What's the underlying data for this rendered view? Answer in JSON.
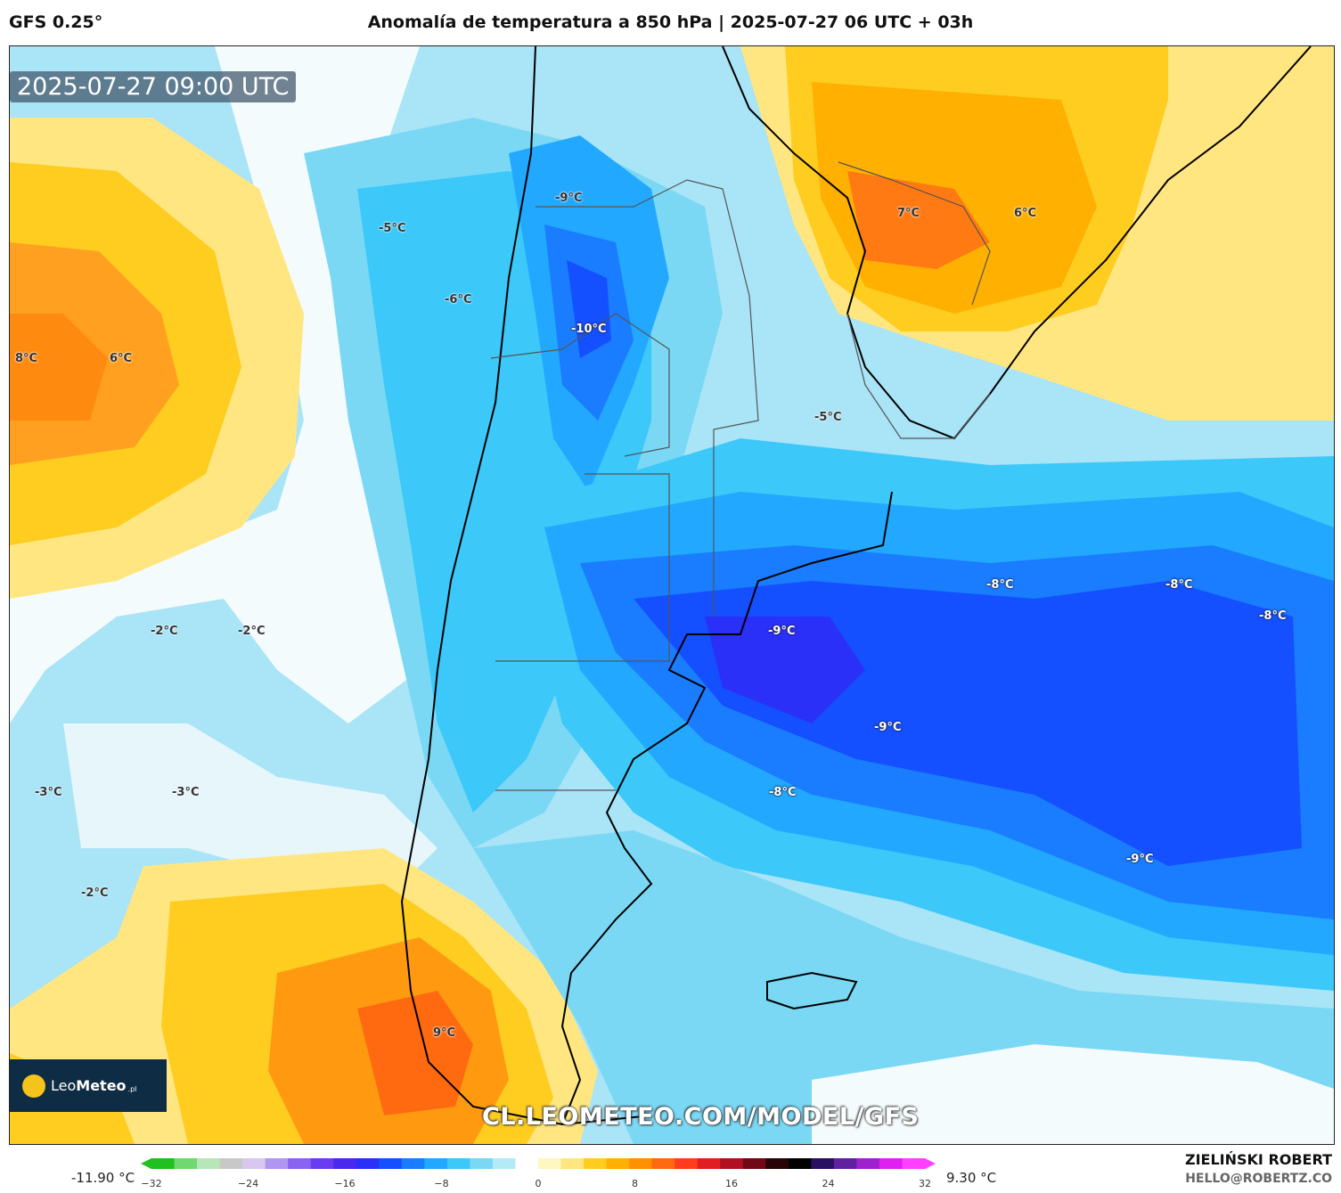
{
  "header": {
    "model": "GFS 0.25°",
    "title": "Anomalía de temperatura a 850 hPa | 2025-07-27 06 UTC + 03h"
  },
  "map": {
    "timestamp": "2025-07-27 09:00 UTC",
    "watermark": "CL.LEOMETEO.COM/MODEL/GFS",
    "labels": [
      "-9°C",
      "-5°C",
      "-6°C",
      "-10°C",
      "8°C",
      "6°C",
      "7°C",
      "6°C",
      "-5°C",
      "-8°C",
      "-8°C",
      "-8°C",
      "-2°C",
      "-2°C",
      "-9°C",
      "-9°C",
      "-3°C",
      "-3°C",
      "-8°C",
      "-9°C",
      "-2°C",
      "9°C"
    ]
  },
  "logo": {
    "name_light": "Leo",
    "name_bold": "Meteo",
    "suffix": ".pl"
  },
  "colorbar": {
    "min_label": "-11.90 °C",
    "max_label": "9.30 °C",
    "ticks": [
      "−32",
      "−24",
      "−16",
      "−8",
      "0",
      "8",
      "16",
      "24",
      "32"
    ],
    "colors": [
      "#1fc01f",
      "#6fd86f",
      "#b8e6b8",
      "#c8c8c8",
      "#d8c8f0",
      "#b096f0",
      "#8a64f0",
      "#6a3cf0",
      "#4a28f0",
      "#2a30f8",
      "#1450ff",
      "#1a7cff",
      "#22a8ff",
      "#3cc8f8",
      "#7ad8f5",
      "#b4eaf8",
      "#ffffff",
      "#fff6c0",
      "#ffe680",
      "#ffcc20",
      "#ffb000",
      "#ff9000",
      "#ff6a10",
      "#ff3c1c",
      "#e01e22",
      "#b01020",
      "#700818",
      "#280408",
      "#000000",
      "#2a1060",
      "#6020a0",
      "#a020d0",
      "#e020f0",
      "#ff40ff"
    ]
  },
  "credit": {
    "name": "ZIELIŃSKI ROBERT",
    "email": "HELLO@ROBERTZ.CO"
  }
}
